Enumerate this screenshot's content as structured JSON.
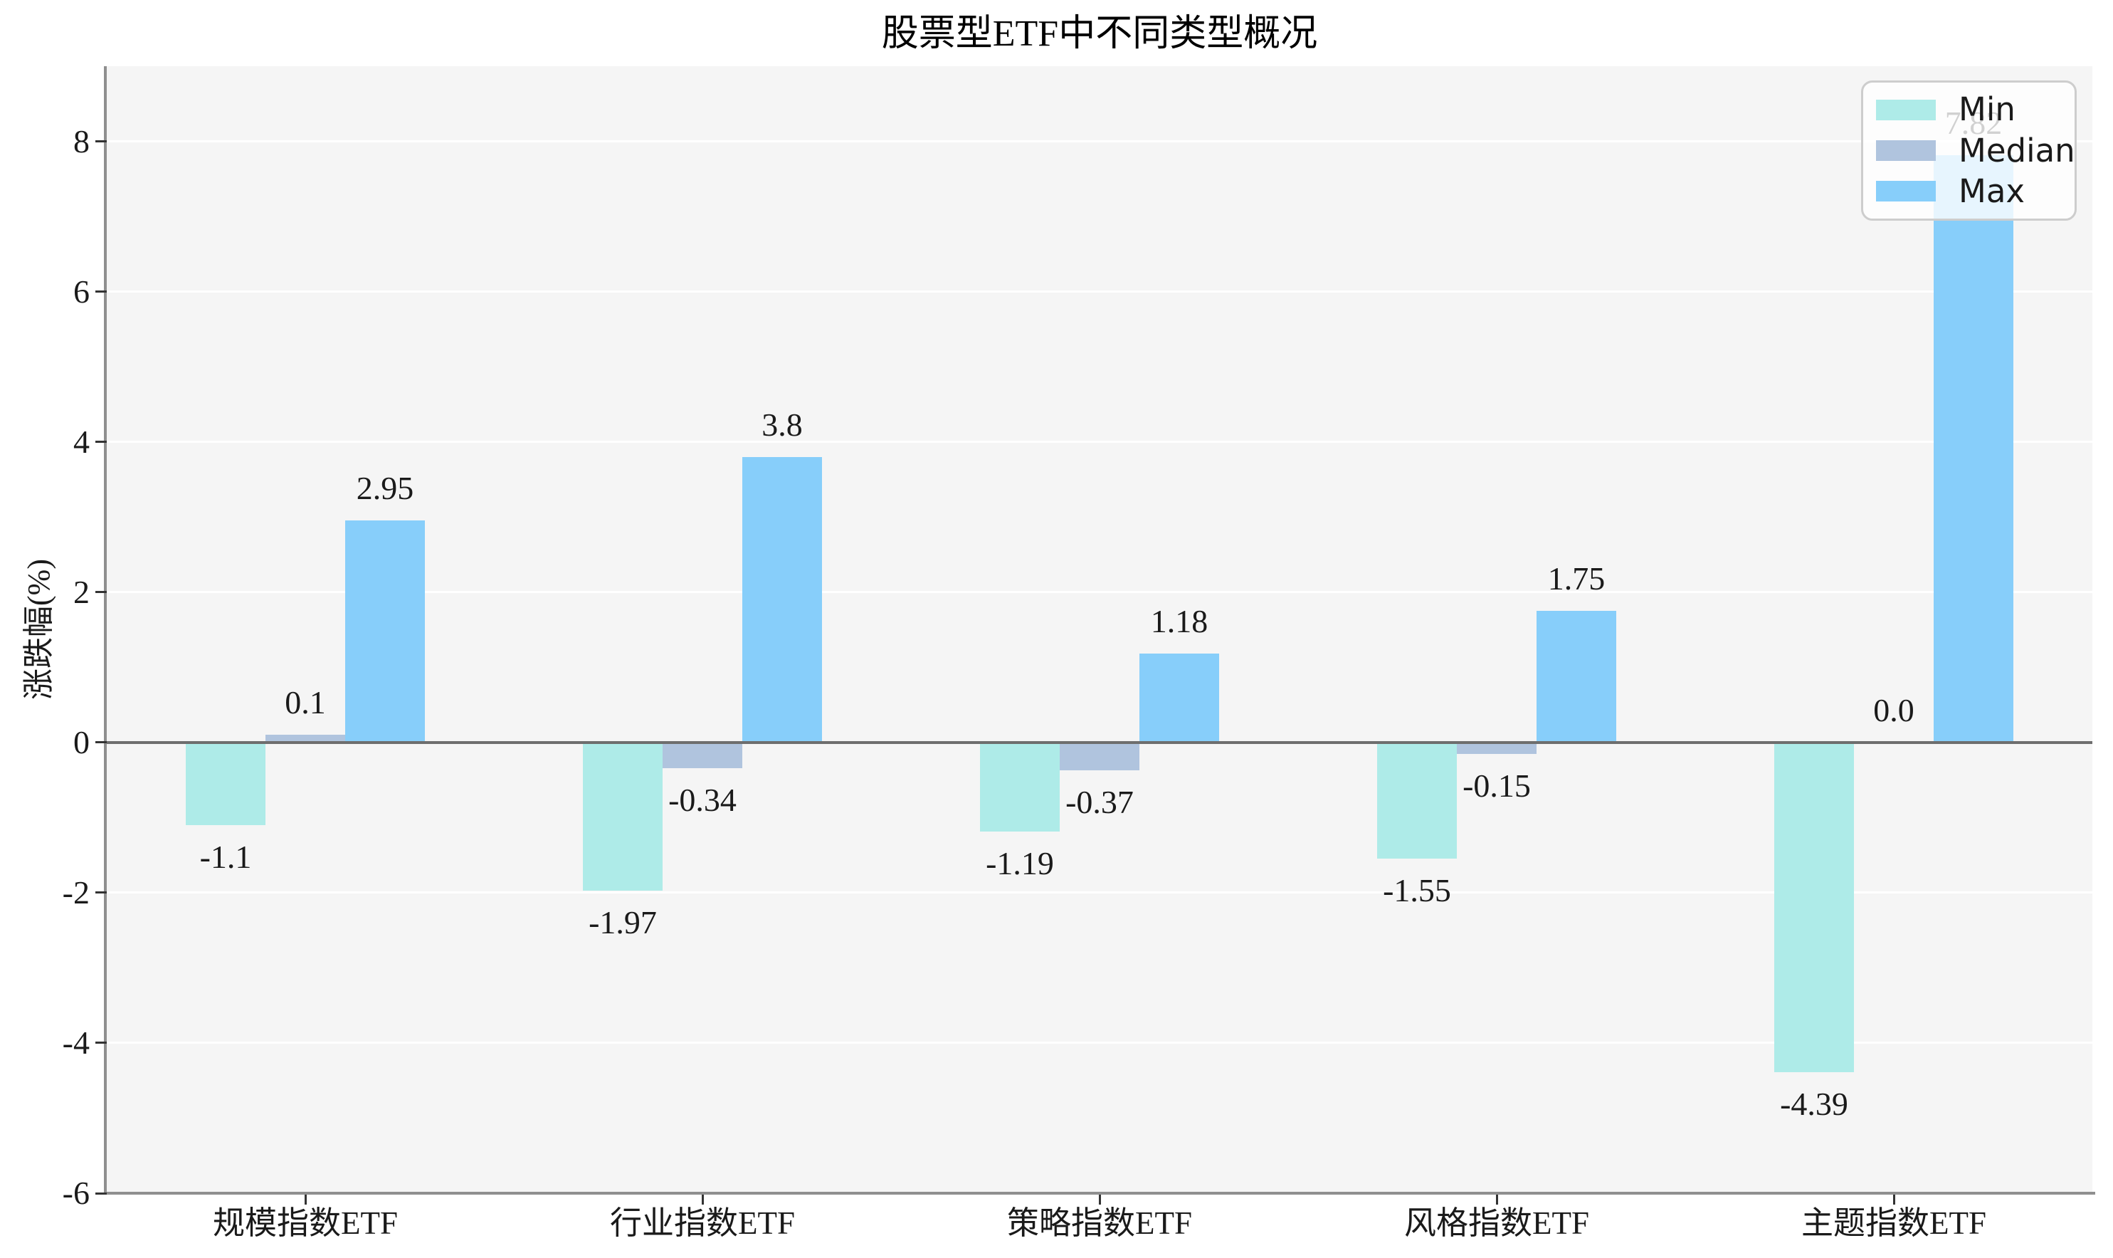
{
  "page": {
    "title": "股票型ETF中不同类型概况",
    "ylabel": "涨跌幅(%)"
  },
  "chart_data": {
    "type": "bar",
    "title": "股票型ETF中不同类型概况",
    "xlabel": "",
    "ylabel": "涨跌幅(%)",
    "categories": [
      "规模指数ETF",
      "行业指数ETF",
      "策略指数ETF",
      "风格指数ETF",
      "主题指数ETF"
    ],
    "series": [
      {
        "name": "Min",
        "color": "#AEEBE8",
        "values": [
          -1.1,
          -1.97,
          -1.19,
          -1.55,
          -4.39
        ],
        "labels": [
          "-1.1",
          "-1.97",
          "-1.19",
          "-1.55",
          "-4.39"
        ]
      },
      {
        "name": "Median",
        "color": "#B0C4DE",
        "values": [
          0.1,
          -0.34,
          -0.37,
          -0.15,
          0.0
        ],
        "labels": [
          "0.1",
          "-0.34",
          "-0.37",
          "-0.15",
          "0.0"
        ]
      },
      {
        "name": "Max",
        "color": "#87CEFA",
        "values": [
          2.95,
          3.8,
          1.18,
          1.75,
          7.82
        ],
        "labels": [
          "2.95",
          "3.8",
          "1.18",
          "1.75",
          "7.82"
        ]
      }
    ],
    "yticks": [
      -6,
      -4,
      -2,
      0,
      2,
      4,
      6,
      8
    ],
    "ylim": [
      -6,
      9.0
    ],
    "grid": {
      "axis": "y",
      "color": "#ffffff"
    },
    "legend": {
      "position": "upper-right",
      "entries": [
        "Min",
        "Median",
        "Max"
      ]
    },
    "baseline": 0,
    "plot_bg": "#f5f5f5",
    "fig_bg": "#ffffff",
    "spine_color": "#8f8f8f",
    "zero_line_color": "#6e6e6e",
    "tick_color": "#333333",
    "text_color": "#1a1a1a"
  }
}
